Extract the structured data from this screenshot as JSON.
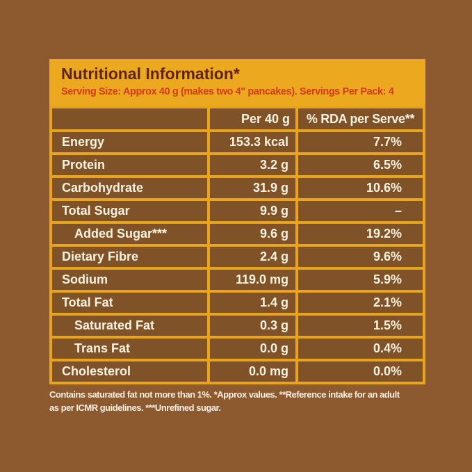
{
  "colors": {
    "page_background": "#8D592E",
    "panel_gold": "#ECA81F",
    "border_gold": "#E9A41F",
    "cell_brown": "#7F5227",
    "title_text": "#5E2410",
    "serving_text": "#D43A1E",
    "cell_text": "#FBF3E2"
  },
  "header": {
    "title": "Nutritional Information*",
    "serving_line": "Serving Size: Approx 40 g (makes two 4\" pancakes). Servings Per Pack: 4"
  },
  "table": {
    "columns": [
      "",
      "Per 40 g",
      "% RDA per Serve**"
    ],
    "rows": [
      {
        "label": "Energy",
        "indent": false,
        "per": "153.3 kcal",
        "rda": "7.7%"
      },
      {
        "label": "Protein",
        "indent": false,
        "per": "3.2 g",
        "rda": "6.5%"
      },
      {
        "label": "Carbohydrate",
        "indent": false,
        "per": "31.9 g",
        "rda": "10.6%"
      },
      {
        "label": "Total Sugar",
        "indent": false,
        "per": "9.9 g",
        "rda": "–"
      },
      {
        "label": "Added Sugar***",
        "indent": true,
        "per": "9.6 g",
        "rda": "19.2%"
      },
      {
        "label": "Dietary Fibre",
        "indent": false,
        "per": "2.4 g",
        "rda": "9.6%"
      },
      {
        "label": "Sodium",
        "indent": false,
        "per": "119.0 mg",
        "rda": "5.9%"
      },
      {
        "label": "Total Fat",
        "indent": false,
        "per": "1.4 g",
        "rda": "2.1%"
      },
      {
        "label": "Saturated Fat",
        "indent": true,
        "per": "0.3 g",
        "rda": "1.5%"
      },
      {
        "label": "Trans Fat",
        "indent": true,
        "per": "0.0 g",
        "rda": "0.4%"
      },
      {
        "label": "Cholesterol",
        "indent": false,
        "per": "0.0 mg",
        "rda": "0.0%"
      }
    ]
  },
  "footnote": {
    "lines": [
      "Contains saturated fat not more than 1%. *Approx values. **Reference intake for an adult",
      "as per ICMR guidelines. ***Unrefined sugar."
    ]
  }
}
